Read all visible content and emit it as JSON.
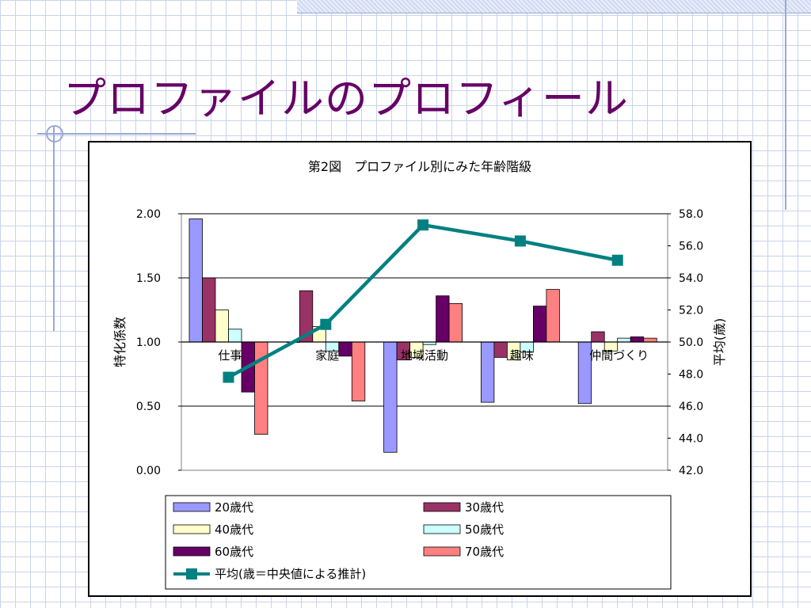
{
  "slide": {
    "title": "プロファイルのプロフィール"
  },
  "chart_data": {
    "type": "bar",
    "title": "第2図　プロファイル別にみた年齢階級",
    "ylabel": "特化係数",
    "y2label": "平均(歳)",
    "categories": [
      "仕事",
      "家庭",
      "地域活動",
      "趣味",
      "仲間づくり"
    ],
    "ylim": [
      0.0,
      2.0
    ],
    "y2lim": [
      42.0,
      58.0
    ],
    "y_ticks": [
      "0.00",
      "0.50",
      "1.00",
      "1.50",
      "2.00"
    ],
    "y2_ticks": [
      "42.0",
      "44.0",
      "46.0",
      "48.0",
      "50.0",
      "52.0",
      "54.0",
      "56.0",
      "58.0"
    ],
    "baseline": 1.0,
    "grid": true,
    "legend_position": "bottom",
    "series": [
      {
        "name": "20歳代",
        "color": "#9999ff",
        "values": [
          1.96,
          1.0,
          0.14,
          0.53,
          0.52
        ]
      },
      {
        "name": "30歳代",
        "color": "#993366",
        "values": [
          1.5,
          1.4,
          0.86,
          0.88,
          1.08
        ]
      },
      {
        "name": "40歳代",
        "color": "#ffffcc",
        "values": [
          1.25,
          1.12,
          0.88,
          0.86,
          0.93
        ]
      },
      {
        "name": "50歳代",
        "color": "#ccffff",
        "values": [
          1.1,
          0.93,
          0.98,
          0.92,
          1.03
        ]
      },
      {
        "name": "60歳代",
        "color": "#660066",
        "values": [
          0.61,
          0.89,
          1.36,
          1.28,
          1.04
        ]
      },
      {
        "name": "70歳代",
        "color": "#ff8080",
        "values": [
          0.28,
          0.54,
          1.3,
          1.41,
          1.03
        ]
      }
    ],
    "line_series": {
      "name": "平均(歳＝中央値による推計)",
      "color": "#008080",
      "axis": "secondary",
      "values": [
        47.8,
        51.1,
        57.3,
        56.3,
        55.1
      ]
    }
  }
}
